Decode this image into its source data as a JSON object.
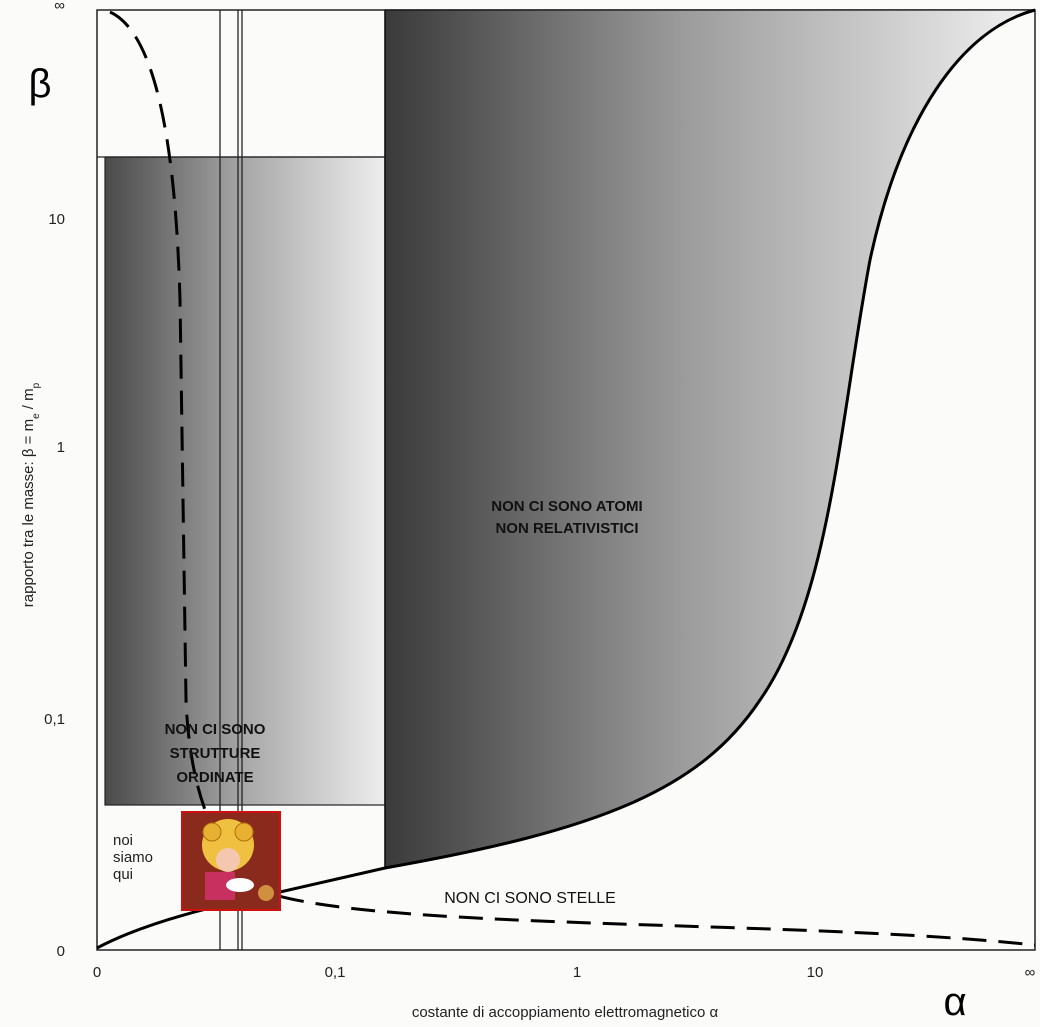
{
  "figure": {
    "y_symbol": "β",
    "x_symbol": "α",
    "x_axis_label": "costante di accoppiamento elettromagnetico α",
    "y_axis_label": {
      "start": "rapporto tra le masse: β = m",
      "sub1": "e",
      "middle": " / m",
      "sub2": "p"
    },
    "x_ticks": [
      "0",
      "0,1",
      "1",
      "10",
      "∞"
    ],
    "y_ticks": [
      "∞",
      "10",
      "1",
      "0,1",
      "0"
    ],
    "regions": {
      "no_atoms": [
        "NON CI SONO ATOMI",
        "NON RELATIVISTICI"
      ],
      "no_structures": [
        "NON CI SONO",
        "STRUTTURE",
        "ORDINATE"
      ],
      "we_are_here": [
        "noi",
        "siamo",
        "qui"
      ],
      "no_stars": "NON CI SONO STELLE"
    }
  }
}
